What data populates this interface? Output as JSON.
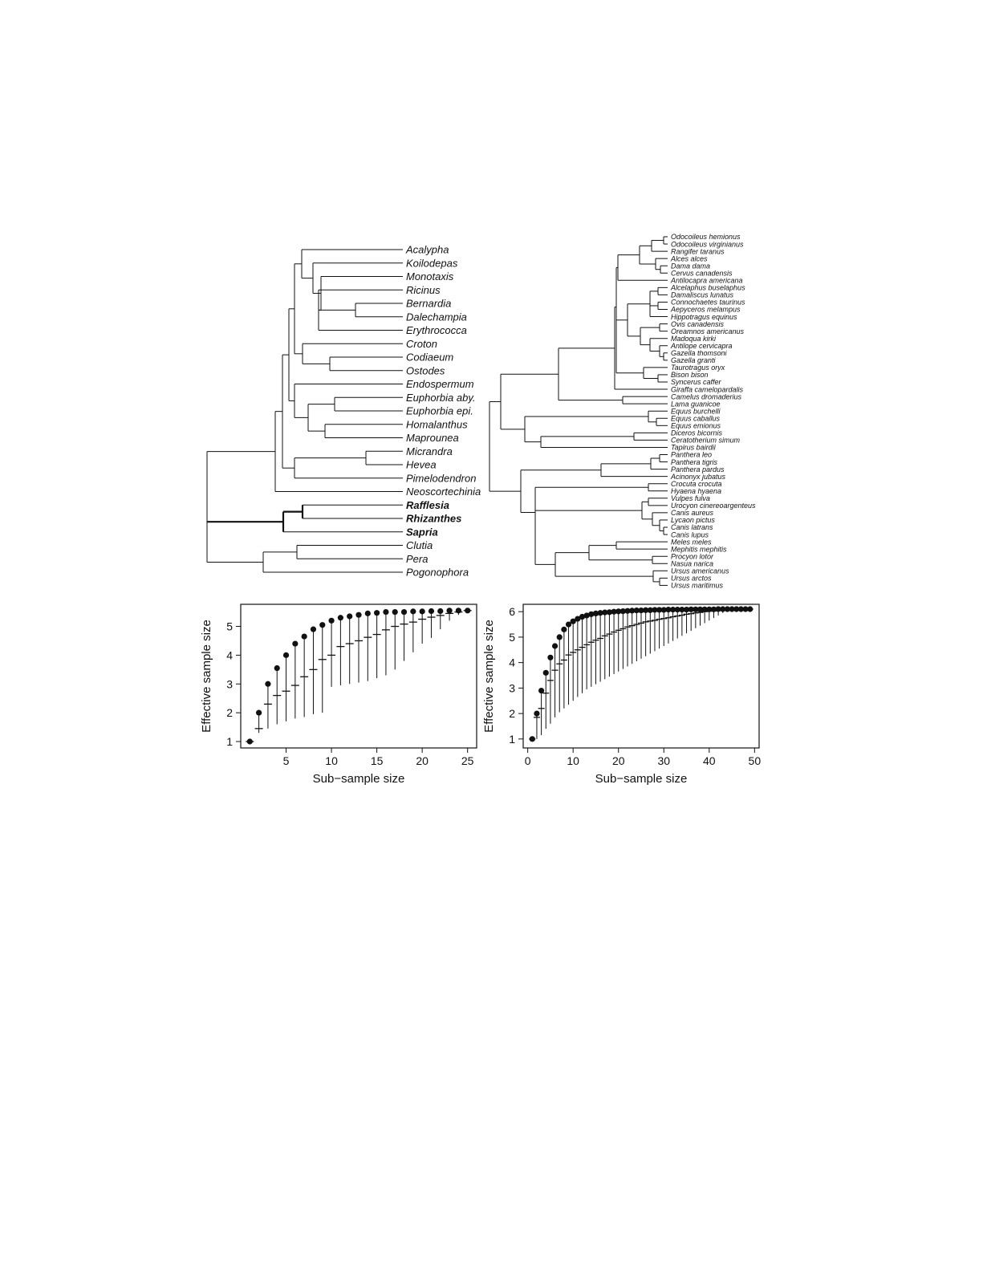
{
  "figure": {
    "left_tree": {
      "tips": [
        "Acalypha",
        "Koilodepas",
        "Monotaxis",
        "Ricinus",
        "Bernardia",
        "Dalechampia",
        "Erythrococca",
        "Croton",
        "Codiaeum",
        "Ostodes",
        "Endospermum",
        "Euphorbia aby.",
        "Euphorbia epi.",
        "Homalanthus",
        "Maprounea",
        "Micrandra",
        "Hevea",
        "Pimelodendron",
        "Neoscortechinia",
        "Rafflesia",
        "Rhizanthes",
        "Sapria",
        "Clutia",
        "Pera",
        "Pogonophora"
      ],
      "bold_tips": [
        "Rafflesia",
        "Rhizanthes",
        "Sapria"
      ]
    },
    "right_tree": {
      "tips": [
        "Odocoileus hemionus",
        "Odocoileus virginianus",
        "Rangifer taranus",
        "Alces alces",
        "Dama dama",
        "Cervus canadensis",
        "Antilocapra americana",
        "Alcelaphus buselaphus",
        "Damaliscus lunatus",
        "Connochaetes taurinus",
        "Aepyceros melampus",
        "Hippotragus equinus",
        "Ovis canadensis",
        "Oreamnos americanus",
        "Madoqua kirki",
        "Antilope cervicapra",
        "Gazella thomsoni",
        "Gazella granti",
        "Taurotragus oryx",
        "Bison bison",
        "Syncerus caffer",
        "Giraffa camelopardalis",
        "Camelus dromaderius",
        "Lama guanicoe",
        "Equus burchelli",
        "Equus caballus",
        "Equus emionus",
        "Diceros bicornis",
        "Ceratotherium simum",
        "Tapirus bairdii",
        "Panthera leo",
        "Panthera tigris",
        "Panthera pardus",
        "Acinonyx jubatus",
        "Crocuta crocuta",
        "Hyaena hyaena",
        "Vulpes fulva",
        "Urocyon cinereoargenteus",
        "Canis aureus",
        "Lycaon pictus",
        "Canis latrans",
        "Canis lupus",
        "Meles meles",
        "Mephitis mephitis",
        "Procyon lotor",
        "Nasua narica",
        "Ursus americanus",
        "Ursus arctos",
        "Ursus maritimus"
      ]
    }
  },
  "chart_data": [
    {
      "type": "scatter",
      "xlabel": "Sub−sample size",
      "ylabel": "Effective sample size",
      "xlim": [
        0,
        26
      ],
      "ylim": [
        1,
        5.6
      ],
      "xticks": [
        5,
        10,
        15,
        20,
        25
      ],
      "yticks": [
        1,
        2,
        3,
        4,
        5
      ],
      "x": [
        1,
        2,
        3,
        4,
        5,
        6,
        7,
        8,
        9,
        10,
        11,
        12,
        13,
        14,
        15,
        16,
        17,
        18,
        19,
        20,
        21,
        22,
        23,
        24,
        25
      ],
      "max": [
        1.0,
        2.0,
        3.0,
        3.55,
        4.0,
        4.4,
        4.65,
        4.9,
        5.05,
        5.2,
        5.3,
        5.35,
        5.4,
        5.45,
        5.47,
        5.5,
        5.5,
        5.5,
        5.52,
        5.52,
        5.53,
        5.53,
        5.55,
        5.55,
        5.55
      ],
      "mean": [
        1.0,
        1.45,
        2.3,
        2.6,
        2.75,
        2.95,
        3.25,
        3.5,
        3.85,
        4.0,
        4.3,
        4.4,
        4.5,
        4.62,
        4.72,
        4.88,
        5.0,
        5.08,
        5.15,
        5.25,
        5.32,
        5.38,
        5.45,
        5.5,
        5.55
      ],
      "min": [
        1.0,
        1.3,
        1.45,
        1.6,
        1.7,
        1.8,
        1.85,
        1.95,
        2.0,
        2.9,
        2.95,
        3.0,
        3.05,
        3.1,
        3.2,
        3.3,
        3.5,
        3.8,
        4.1,
        4.4,
        4.6,
        4.9,
        5.2,
        5.4,
        5.55
      ]
    },
    {
      "type": "scatter",
      "xlabel": "Sub−sample size",
      "ylabel": "Effective sample size",
      "xlim": [
        -1,
        51
      ],
      "ylim": [
        0.9,
        6.1
      ],
      "xticks": [
        0,
        10,
        20,
        30,
        40,
        50
      ],
      "yticks": [
        1,
        2,
        3,
        4,
        5,
        6
      ],
      "x": [
        1,
        2,
        3,
        4,
        5,
        6,
        7,
        8,
        9,
        10,
        11,
        12,
        13,
        14,
        15,
        16,
        17,
        18,
        19,
        20,
        21,
        22,
        23,
        24,
        25,
        26,
        27,
        28,
        29,
        30,
        31,
        32,
        33,
        34,
        35,
        36,
        37,
        38,
        39,
        40,
        41,
        42,
        43,
        44,
        45,
        46,
        47,
        48,
        49
      ],
      "max": [
        1.0,
        2.0,
        2.9,
        3.6,
        4.2,
        4.65,
        5.0,
        5.3,
        5.5,
        5.62,
        5.72,
        5.8,
        5.85,
        5.9,
        5.93,
        5.95,
        5.97,
        5.98,
        6.0,
        6.01,
        6.02,
        6.03,
        6.04,
        6.05,
        6.05,
        6.06,
        6.06,
        6.07,
        6.07,
        6.07,
        6.08,
        6.08,
        6.08,
        6.08,
        6.08,
        6.09,
        6.09,
        6.09,
        6.09,
        6.09,
        6.09,
        6.1,
        6.1,
        6.1,
        6.1,
        6.1,
        6.1,
        6.1,
        6.1
      ],
      "mean": [
        1.0,
        1.85,
        2.2,
        2.8,
        3.3,
        3.7,
        3.95,
        4.1,
        4.3,
        4.4,
        4.5,
        4.6,
        4.7,
        4.8,
        4.88,
        4.95,
        5.05,
        5.12,
        5.2,
        5.27,
        5.33,
        5.4,
        5.45,
        5.5,
        5.55,
        5.6,
        5.63,
        5.66,
        5.7,
        5.73,
        5.76,
        5.8,
        5.83,
        5.86,
        5.9,
        5.92,
        5.95,
        5.97,
        6.0,
        6.02,
        6.03,
        6.04,
        6.05,
        6.06,
        6.07,
        6.08,
        6.09,
        6.1,
        6.1
      ],
      "min": [
        1.0,
        1.0,
        1.15,
        1.4,
        1.6,
        1.85,
        2.05,
        2.2,
        2.35,
        2.5,
        2.65,
        2.8,
        2.95,
        3.05,
        3.15,
        3.25,
        3.35,
        3.45,
        3.55,
        3.65,
        3.75,
        3.85,
        3.95,
        4.05,
        4.15,
        4.25,
        4.35,
        4.45,
        4.55,
        4.65,
        4.75,
        4.85,
        4.95,
        5.05,
        5.15,
        5.25,
        5.35,
        5.45,
        5.55,
        5.65,
        5.75,
        5.85,
        5.95,
        6.0,
        6.05,
        6.08,
        6.1,
        6.1,
        6.1
      ]
    }
  ]
}
